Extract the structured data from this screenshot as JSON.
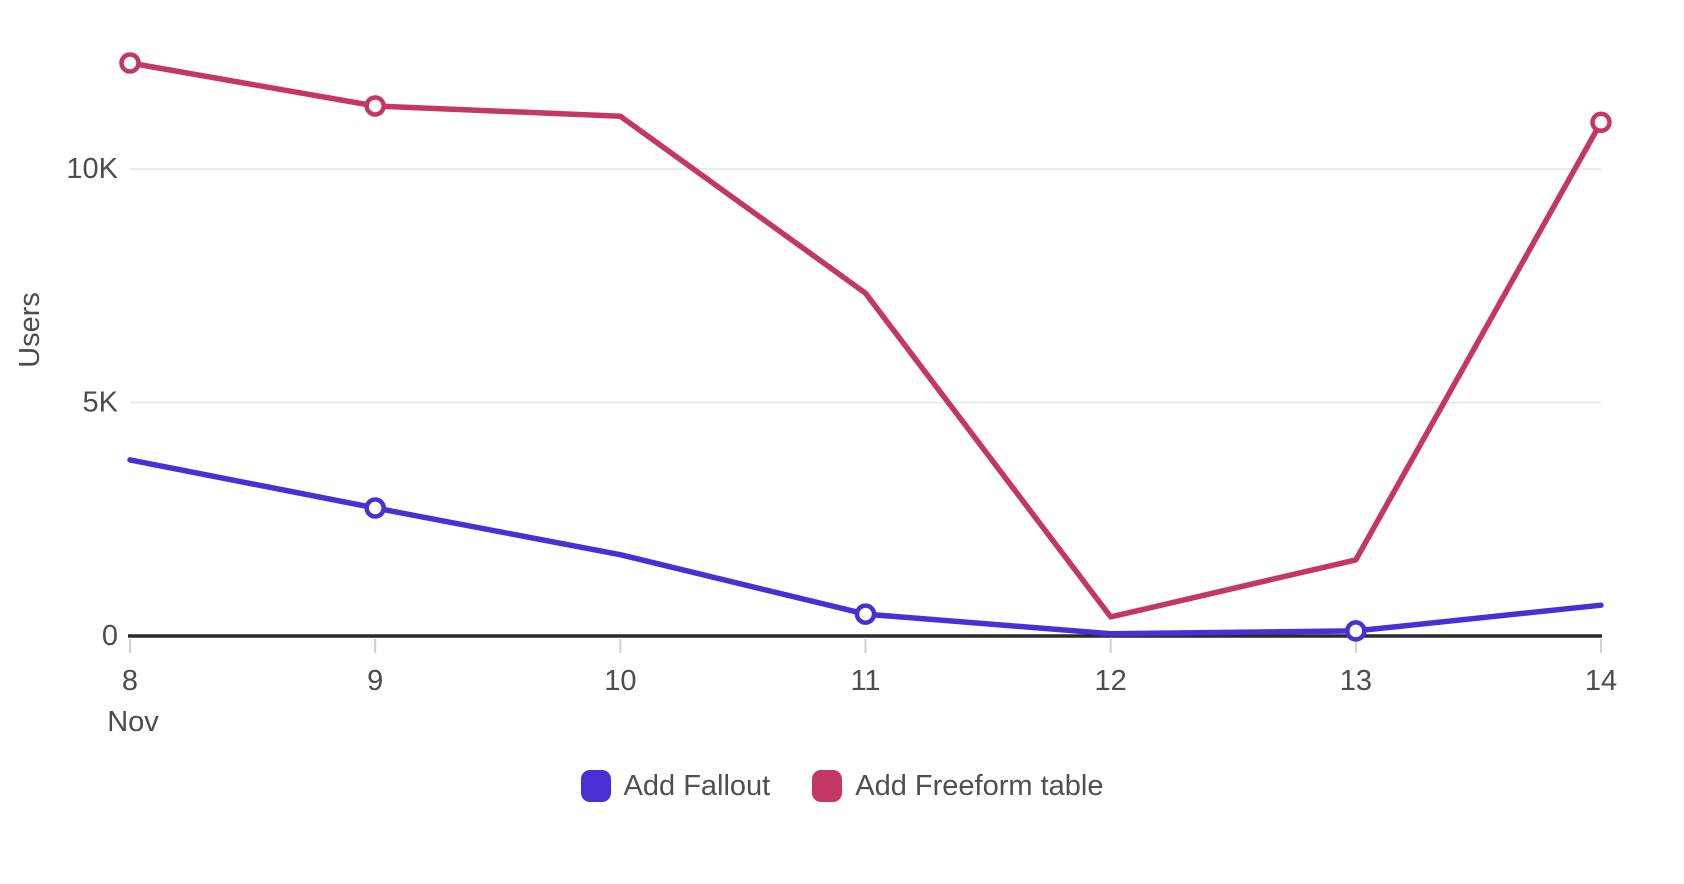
{
  "chart_data": {
    "type": "line",
    "title": "",
    "xlabel": "Nov",
    "ylabel": "Users",
    "x": [
      8,
      9,
      10,
      11,
      12,
      13,
      14
    ],
    "x_tick_labels": [
      "8",
      "9",
      "10",
      "11",
      "12",
      "13",
      "14"
    ],
    "y_ticks": [
      {
        "value": 0,
        "label": "0"
      },
      {
        "value": 5000,
        "label": "5K"
      },
      {
        "value": 10000,
        "label": "10K"
      }
    ],
    "ylim": [
      0,
      13600
    ],
    "grid": "horizontal",
    "legend_position": "bottom",
    "series": [
      {
        "name": "Add Fallout",
        "color": "#4c2ed6",
        "values": [
          3770,
          2740,
          1740,
          470,
          50,
          110,
          660
        ],
        "markers_at_x": [
          9,
          11,
          13
        ]
      },
      {
        "name": "Add Freeform table",
        "color": "#c53763",
        "values": [
          12270,
          11350,
          11130,
          7340,
          410,
          1630,
          11000
        ],
        "markers_at_x": [
          8,
          9,
          14
        ]
      }
    ]
  },
  "style": {
    "axis_text_color": "#4c4c4c",
    "legend_text_color": "#4f4f4f",
    "grid_color": "#e3e3e3",
    "axis_line_color": "#2b2b2b",
    "tick_color": "#cfcfcf",
    "marker_fill": "#ffffff",
    "background": "#ffffff"
  }
}
